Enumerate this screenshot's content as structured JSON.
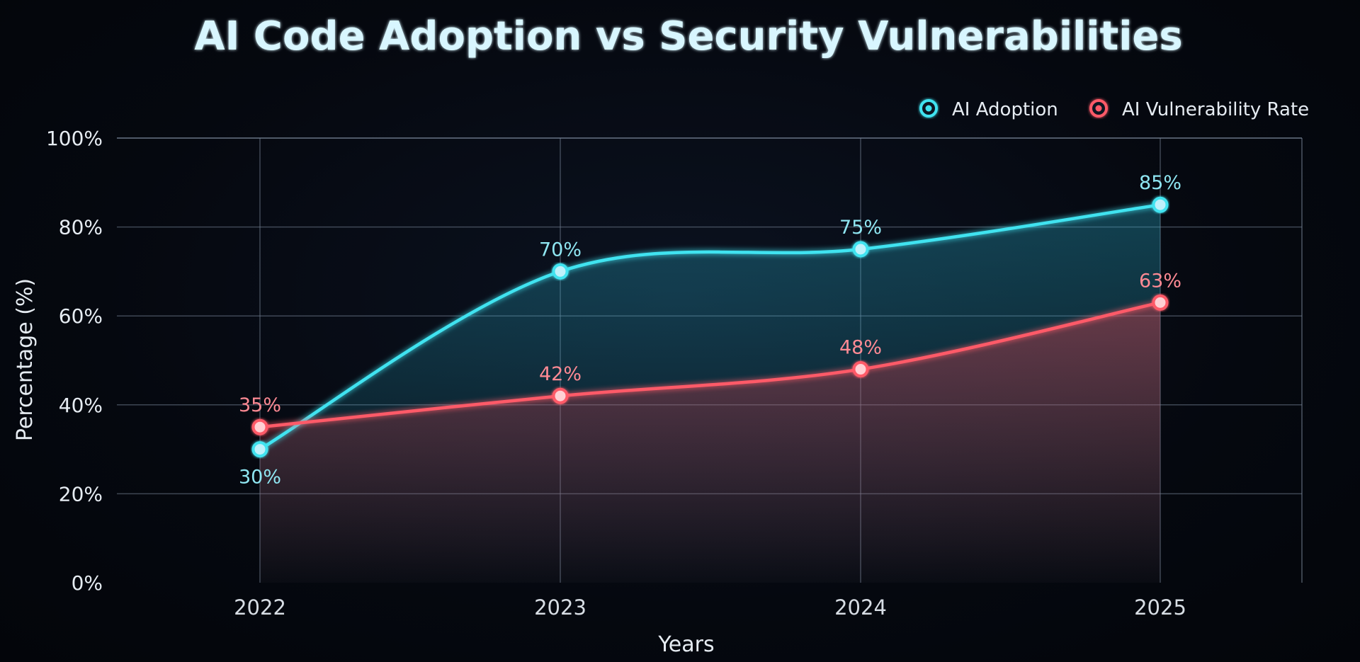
{
  "chart_data": {
    "type": "line",
    "title": "AI Code Adoption vs Security Vulnerabilities",
    "xlabel": "Years",
    "ylabel": "Percentage (%)",
    "ylim": [
      0,
      100
    ],
    "yticks": [
      0,
      20,
      40,
      60,
      80,
      100
    ],
    "ytick_labels": [
      "0%",
      "20%",
      "40%",
      "60%",
      "80%",
      "100%"
    ],
    "categories": [
      "2022",
      "2023",
      "2024",
      "2025"
    ],
    "grid": true,
    "legend_position": "top-right",
    "series": [
      {
        "name": "AI Adoption",
        "color": "#3fe3f0",
        "values": [
          30,
          70,
          75,
          85
        ],
        "labels": [
          "30%",
          "70%",
          "75%",
          "85%"
        ]
      },
      {
        "name": "AI Vulnerability Rate",
        "color": "#ff5a68",
        "values": [
          35,
          42,
          48,
          63
        ],
        "labels": [
          "35%",
          "42%",
          "48%",
          "63%"
        ]
      }
    ]
  }
}
